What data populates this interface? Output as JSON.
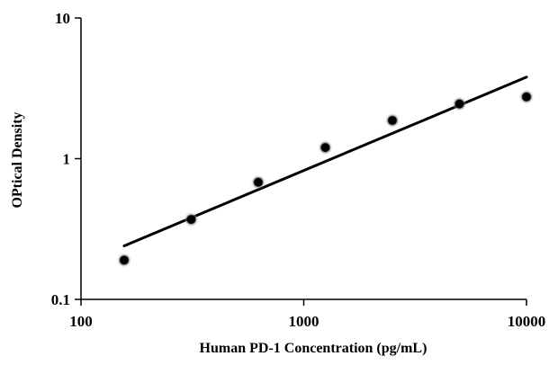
{
  "chart_data": {
    "type": "scatter",
    "title": "",
    "xlabel": "Human PD-1 Concentration (pg/mL)",
    "ylabel": "OPtical Density",
    "x_scale": "log",
    "y_scale": "log",
    "xlim": [
      100,
      10000
    ],
    "ylim": [
      0.1,
      10
    ],
    "x_ticks": [
      100,
      1000,
      10000
    ],
    "x_tick_labels": [
      "100",
      "1000",
      "10000"
    ],
    "y_ticks": [
      0.1,
      1,
      10
    ],
    "y_tick_labels": [
      "0.1",
      "1",
      "10"
    ],
    "grid": false,
    "legend": "none",
    "series": [
      {
        "type": "scatter",
        "x": [
          156.25,
          312.5,
          625,
          1250,
          2500,
          5000,
          10000
        ],
        "y": [
          0.19,
          0.37,
          0.68,
          1.2,
          1.87,
          2.45,
          2.75
        ],
        "color": "#000000"
      },
      {
        "type": "trendline",
        "x": [
          156.25,
          10000
        ],
        "y": [
          0.24,
          3.8
        ],
        "color": "#000000"
      }
    ]
  }
}
